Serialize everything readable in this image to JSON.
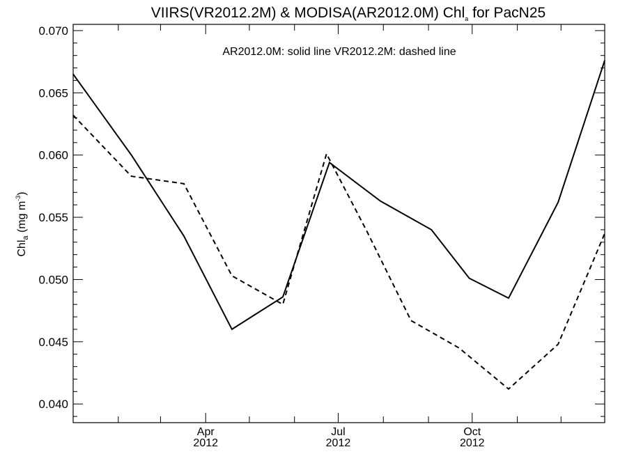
{
  "chart_data": {
    "type": "line",
    "title": {
      "prefix": "VIIRS(VR2012.2M) & MODISA(AR2012.0M)  Chl",
      "subscript": "a",
      "suffix": " for PacN25"
    },
    "annotation": "AR2012.0M: solid line   VR2012.2M: dashed line",
    "ylabel": {
      "main": "Chl",
      "subscript": "a",
      "unit_open": " (mg m",
      "superscript": "-3",
      "unit_close": ")"
    },
    "xlabel": "",
    "x_range": [
      "2012-01-01",
      "2012-12-31"
    ],
    "ylim": [
      0.0385,
      0.0705
    ],
    "y_ticks": [
      {
        "value": 0.04,
        "label": "0.040"
      },
      {
        "value": 0.045,
        "label": "0.045"
      },
      {
        "value": 0.05,
        "label": "0.050"
      },
      {
        "value": 0.055,
        "label": "0.055"
      },
      {
        "value": 0.06,
        "label": "0.060"
      },
      {
        "value": 0.065,
        "label": "0.065"
      },
      {
        "value": 0.07,
        "label": "0.070"
      }
    ],
    "y_minor_step": 0.001,
    "x_ticks": [
      {
        "date": "2012-04-01",
        "month": "Apr",
        "year": "2012"
      },
      {
        "date": "2012-07-01",
        "month": "Jul",
        "year": "2012"
      },
      {
        "date": "2012-10-01",
        "month": "Oct",
        "year": "2012"
      }
    ],
    "x_minor_ticks": [
      "2012-02-01",
      "2012-03-01",
      "2012-05-01",
      "2012-06-01",
      "2012-08-01",
      "2012-09-01",
      "2012-11-01",
      "2012-12-01"
    ],
    "grid": false,
    "series": [
      {
        "name": "AR2012.0M",
        "style": "solid",
        "color": "#000000",
        "points": [
          {
            "x": "2012-01-01",
            "y": 0.0665
          },
          {
            "x": "2012-02-10",
            "y": 0.06
          },
          {
            "x": "2012-03-17",
            "y": 0.0535
          },
          {
            "x": "2012-04-19",
            "y": 0.046
          },
          {
            "x": "2012-05-24",
            "y": 0.0486
          },
          {
            "x": "2012-06-25",
            "y": 0.0594
          },
          {
            "x": "2012-07-30",
            "y": 0.0563
          },
          {
            "x": "2012-09-03",
            "y": 0.054
          },
          {
            "x": "2012-09-29",
            "y": 0.0501
          },
          {
            "x": "2012-10-26",
            "y": 0.0485
          },
          {
            "x": "2012-11-29",
            "y": 0.0562
          },
          {
            "x": "2012-12-31",
            "y": 0.0676
          }
        ]
      },
      {
        "name": "VR2012.2M",
        "style": "dashed",
        "color": "#000000",
        "points": [
          {
            "x": "2012-01-01",
            "y": 0.0632
          },
          {
            "x": "2012-02-10",
            "y": 0.0583
          },
          {
            "x": "2012-03-17",
            "y": 0.0577
          },
          {
            "x": "2012-04-19",
            "y": 0.0503
          },
          {
            "x": "2012-05-24",
            "y": 0.048
          },
          {
            "x": "2012-06-23",
            "y": 0.0601
          },
          {
            "x": "2012-07-21",
            "y": 0.0538
          },
          {
            "x": "2012-08-20",
            "y": 0.0467
          },
          {
            "x": "2012-09-22",
            "y": 0.0445
          },
          {
            "x": "2012-10-26",
            "y": 0.0412
          },
          {
            "x": "2012-11-29",
            "y": 0.0448
          },
          {
            "x": "2012-12-31",
            "y": 0.0537
          }
        ]
      }
    ]
  }
}
